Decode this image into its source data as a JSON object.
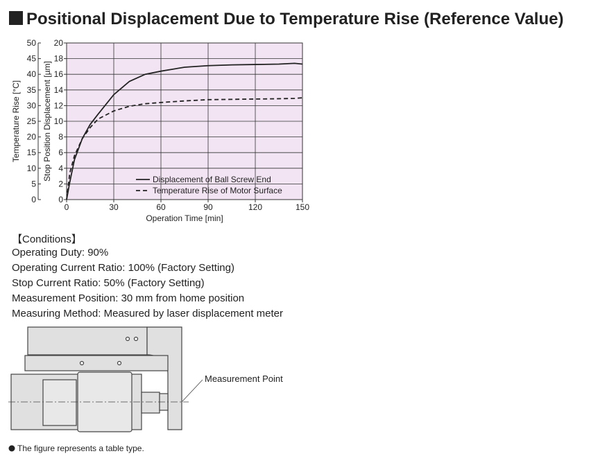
{
  "title": "Positional Displacement Due to Temperature Rise (Reference Value)",
  "chart_data": {
    "type": "line",
    "x_label": "Operation Time [min]",
    "y_label": "Stop Position Displacement [µm]",
    "y2_label": "Temperature Rise [°C]",
    "x": [
      0,
      2,
      5,
      10,
      15,
      20,
      30,
      40,
      50,
      60,
      75,
      90,
      105,
      120,
      135,
      145,
      150
    ],
    "series": [
      {
        "name": "Displacement of Ball Screw End",
        "color": "#222222",
        "line_style": "solid",
        "values": [
          0,
          2.2,
          5.1,
          7.8,
          9.6,
          10.9,
          13.4,
          15.1,
          16.0,
          16.4,
          16.9,
          17.1,
          17.2,
          17.25,
          17.3,
          17.4,
          17.3
        ]
      },
      {
        "name": "Temperature Rise of Motor Surface",
        "color": "#222222",
        "line_style": "dashed",
        "axis": "y2",
        "values": [
          0,
          8.4,
          14,
          19.5,
          23,
          25.7,
          28.3,
          29.8,
          30.6,
          31,
          31.5,
          31.9,
          32,
          32.1,
          32.2,
          32.3,
          32.5
        ]
      }
    ],
    "xlim": [
      0,
      150
    ],
    "xticks": [
      0,
      30,
      60,
      90,
      120,
      150
    ],
    "ylim": [
      0,
      20
    ],
    "yticks": [
      0,
      2,
      4,
      6,
      8,
      10,
      12,
      14,
      16,
      18,
      20
    ],
    "y2lim": [
      0,
      50
    ],
    "y2ticks": [
      0,
      5,
      10,
      15,
      20,
      25,
      30,
      35,
      40,
      45,
      50
    ],
    "grid": true,
    "legend": "lower right",
    "background": "#f2e4f2"
  },
  "conditions": {
    "heading": "【Conditions】",
    "items": [
      "Operating Duty: 90%",
      "Operating Current Ratio: 100% (Factory Setting)",
      "Stop Current Ratio: 50% (Factory Setting)",
      "Measurement Position: 30 mm from home position",
      "Measuring Method: Measured by laser displacement meter"
    ]
  },
  "diagram": {
    "label": "Measurement Point"
  },
  "note": "The figure represents a table type."
}
